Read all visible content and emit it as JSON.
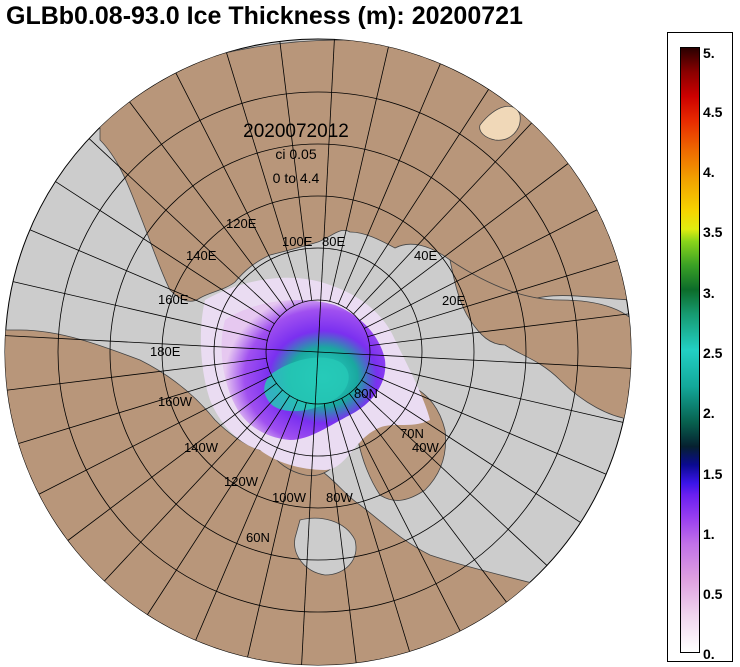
{
  "title": "GLBb0.08-93.0 Ice Thickness (m): 20200721",
  "annotation": {
    "datetime": "2020072012",
    "contour_interval": "ci 0.05",
    "range": "0 to 4.4"
  },
  "grid_labels": [
    "120E",
    "100E",
    "80E",
    "140E",
    "40E",
    "160E",
    "20E",
    "180E",
    "80N",
    "160W",
    "70N",
    "40W",
    "140W",
    "120W",
    "100W",
    "80W",
    "60N"
  ],
  "colorbar": {
    "ticks": [
      "5.",
      "4.5",
      "4.",
      "3.5",
      "3.",
      "2.5",
      "2.",
      "1.5",
      "1.",
      "0.5",
      "0."
    ]
  },
  "colors": {
    "land": "#b8967a",
    "ocean": "#cccccc",
    "grid": "#000000"
  }
}
